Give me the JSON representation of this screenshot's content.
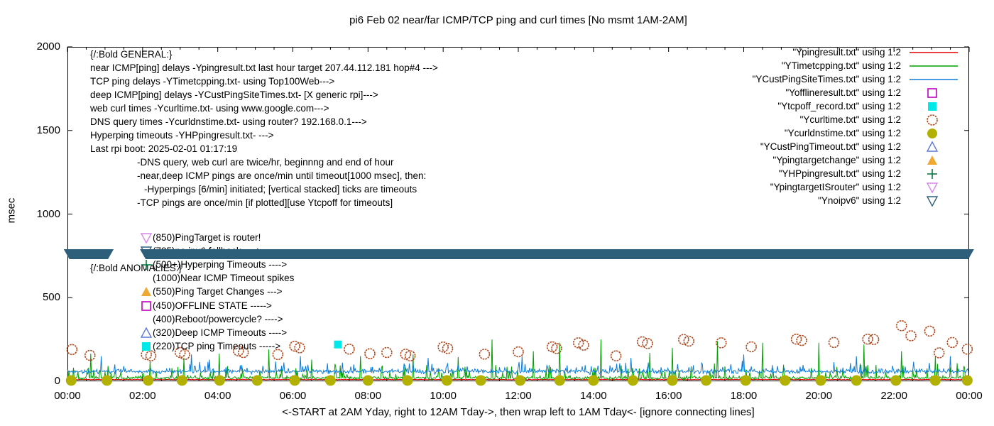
{
  "title": "pi6 Feb 02  near/far ICMP/TCP ping and curl times [No msmt 1AM-2AM]",
  "ylabel": "msec",
  "caption": "<-START at 2AM Yday, right to 12AM Tday->, then wrap left to 1AM Tday<- [ignore connecting lines]",
  "colors": {
    "red_line": "#e00000",
    "green_line": "#00a000",
    "blue_line": "#0b7cd9",
    "magenta_square": "#c000c0",
    "cyan_square": "#00e8e8",
    "curl_circle": "#b0481c",
    "dns_circle": "#b2b000",
    "deep_timeout_triangle": "#5a78d8",
    "target_change_triangle": "#f0a832",
    "hyperping_plus": "#0c7a44",
    "router_triangle": "#d886ec",
    "noipv6_band": "#2e5f7a",
    "axis": "#000000"
  },
  "axes": {
    "y_ticks": [
      "2000",
      "1500",
      "1000",
      "500",
      "0"
    ],
    "y_values": [
      2000,
      1500,
      1000,
      500,
      0
    ],
    "y_range": [
      0,
      2000
    ],
    "x_ticks": [
      "00:00",
      "02:00",
      "04:00",
      "06:00",
      "08:00",
      "10:00",
      "12:00",
      "14:00",
      "16:00",
      "18:00",
      "20:00",
      "22:00",
      "00:00"
    ],
    "x_hours": [
      0,
      2,
      4,
      6,
      8,
      10,
      12,
      14,
      16,
      18,
      20,
      22,
      24
    ],
    "x_range_hours": [
      0,
      24
    ]
  },
  "legend": {
    "entries": [
      {
        "label": "\"Ypingresult.txt\" using 1:2",
        "sample": "line",
        "color": "#e00000"
      },
      {
        "label": "\"YTimetcpping.txt\" using 1:2",
        "sample": "line",
        "color": "#00a000"
      },
      {
        "label": "\"YCustPingSiteTimes.txt\" using 1:2",
        "sample": "line",
        "color": "#0b7cd9"
      },
      {
        "label": "\"Yofflineresult.txt\" using 1:2",
        "sample": "square-open",
        "color": "#c000c0"
      },
      {
        "label": "\"Ytcpoff_record.txt\" using 1:2",
        "sample": "square-filled",
        "color": "#00e8e8"
      },
      {
        "label": "\"Ycurltime.txt\" using 1:2",
        "sample": "circle-open",
        "color": "#b0481c"
      },
      {
        "label": "\"Ycurldnstime.txt\" using 1:2",
        "sample": "circle-filled",
        "color": "#b2b000"
      },
      {
        "label": "\"YCustPingTimeout.txt\" using 1:2",
        "sample": "triangle-up-open",
        "color": "#5a78d8"
      },
      {
        "label": "\"Ypingtargetchange\" using 1:2",
        "sample": "triangle-up-filled",
        "color": "#f0a832"
      },
      {
        "label": "\"YHPpingresult.txt\" using 1:2",
        "sample": "plus",
        "color": "#0c7a44"
      },
      {
        "label": "\"YpingtargetISrouter\" using 1:2",
        "sample": "triangle-down-open",
        "color": "#d886ec"
      },
      {
        "label": "\"Ynoipv6\" using 1:2",
        "sample": "triangle-down-open",
        "color": "#2e5f7a"
      }
    ]
  },
  "annotations": {
    "general": [
      {
        "text": "{/:Bold GENERAL:}",
        "indent": 0
      },
      {
        "text": "near ICMP[ping] delays -Ypingresult.txt last hour target 207.44.112.181 hop#4 --->",
        "indent": 0
      },
      {
        "text": "TCP ping delays -YTimetcpping.txt- using Top100Web--->",
        "indent": 0
      },
      {
        "text": "deep ICMP[ping] delays -YCustPingSiteTimes.txt- [X generic rpi]--->",
        "indent": 0
      },
      {
        "text": "web curl times -Ycurltime.txt- using www.google.com--->",
        "indent": 0
      },
      {
        "text": "DNS query times -Ycurldnstime.txt- using router? 192.168.0.1--->",
        "indent": 0
      },
      {
        "text": "Hyperping timeouts -YHPpingresult.txt- --->",
        "indent": 0
      },
      {
        "text": "Last rpi boot: 2025-02-01 01:17:19",
        "indent": 0
      },
      {
        "text": "-DNS query, web curl are twice/hr, beginnng and end of hour",
        "indent": 66
      },
      {
        "text": "-near,deep ICMP pings are once/min until timeout[1000 msec], then:",
        "indent": 66
      },
      {
        "text": "-Hyperpings [6/min] initiated; [vertical stacked] ticks are timeouts",
        "indent": 76
      },
      {
        "text": "-TCP pings are once/min [if plotted][use Ytcpoff for timeouts]",
        "indent": 66
      }
    ],
    "anomalies_header": "{/:Bold ANOMALIES:}",
    "anomalies": [
      {
        "marker": "triangle-down-open",
        "color": "#d886ec",
        "text": "(850)PingTarget is router!",
        "y": 269
      },
      {
        "marker": "triangle-down-open",
        "color": "#2e5f7a",
        "text": "(785)no ipv6 fallback ---->",
        "y": 288,
        "obscured_by_band": true
      },
      {
        "marker": "plus",
        "color": "#0c7a44",
        "text": "(500+)Hyperping Timeouts ---->",
        "y": 307
      },
      {
        "marker": "none",
        "color": "#000000",
        "text": "(1000)Near ICMP Timeout spikes",
        "y": 326
      },
      {
        "marker": "triangle-up-filled",
        "color": "#f0a832",
        "text": "(550)Ping Target Changes --->",
        "y": 345
      },
      {
        "marker": "square-open",
        "color": "#c000c0",
        "text": "(450)OFFLINE STATE ----->",
        "y": 365
      },
      {
        "marker": "none",
        "color": "#000000",
        "text": "(400)Reboot/powercycle? ---->",
        "y": 384
      },
      {
        "marker": "triangle-up-open",
        "color": "#5a78d8",
        "text": "(320)Deep ICMP Timeouts ---->",
        "y": 403
      },
      {
        "marker": "square-filled",
        "color": "#00e8e8",
        "text": "(220)TCP ping Timeouts ----->",
        "y": 422
      }
    ]
  },
  "chart_data": {
    "type": "line",
    "title": "pi6 Feb 02  near/far ICMP/TCP ping and curl times [No msmt 1AM-2AM]",
    "xlabel": "<-START at 2AM Yday, right to 12AM Tday->, then wrap left to 1AM Tday<- [ignore connecting lines]",
    "ylabel": "msec",
    "x_range_hours": [
      0,
      24
    ],
    "ylim": [
      0,
      2000
    ],
    "grid": false,
    "legend_position": "top-right",
    "no_measurement_window": "1AM-2AM (x = 1.2h to 1.9h, visible as gap in noipv6 band)",
    "noise_seed": 7,
    "series": [
      {
        "name": "Ypingresult.txt",
        "style": "line",
        "color": "#e00000",
        "base": 10,
        "jitter": 3,
        "spike_prob": 0,
        "spike_amp": 0,
        "spikes": []
      },
      {
        "name": "YTimetcpping.txt",
        "style": "line",
        "color": "#00a000",
        "base": 20,
        "jitter": 15,
        "spike_prob": 0.1,
        "spike_amp": 80,
        "spikes": [
          [
            0.62,
            165
          ],
          [
            2.2,
            120
          ],
          [
            3.1,
            140
          ],
          [
            4.03,
            165
          ],
          [
            5.35,
            190
          ],
          [
            6.5,
            130
          ],
          [
            7.8,
            150
          ],
          [
            9.2,
            160
          ],
          [
            10.4,
            145
          ],
          [
            11.3,
            250
          ],
          [
            12.4,
            180
          ],
          [
            13.1,
            230
          ],
          [
            14.2,
            250
          ],
          [
            15.5,
            170
          ],
          [
            16.1,
            200
          ],
          [
            17.3,
            240
          ],
          [
            18.5,
            230
          ],
          [
            20.0,
            230
          ],
          [
            21.2,
            220
          ],
          [
            22.2,
            180
          ],
          [
            23.1,
            150
          ]
        ]
      },
      {
        "name": "YCustPingSiteTimes.txt",
        "style": "line",
        "color": "#0b7cd9",
        "base": 58,
        "jitter": 20,
        "spike_prob": 0.08,
        "spike_amp": 55,
        "spikes": [
          [
            0.9,
            150
          ],
          [
            3.3,
            160
          ],
          [
            6.2,
            150
          ],
          [
            9.6,
            140
          ],
          [
            12.1,
            150
          ],
          [
            15.0,
            140
          ],
          [
            18.0,
            160
          ],
          [
            21.0,
            150
          ],
          [
            23.5,
            150
          ]
        ]
      },
      {
        "name": "Ycurltime.txt",
        "style": "points",
        "marker": "circle-open",
        "color": "#b0481c",
        "points": [
          [
            0.12,
            190
          ],
          [
            0.6,
            155
          ],
          [
            2.1,
            160
          ],
          [
            2.22,
            152
          ],
          [
            3.0,
            172
          ],
          [
            3.12,
            160
          ],
          [
            4.55,
            182
          ],
          [
            4.68,
            172
          ],
          [
            5.6,
            160
          ],
          [
            6.05,
            210
          ],
          [
            6.18,
            200
          ],
          [
            7.5,
            192
          ],
          [
            8.05,
            165
          ],
          [
            8.5,
            172
          ],
          [
            9.0,
            162
          ],
          [
            9.12,
            152
          ],
          [
            10.0,
            205
          ],
          [
            10.12,
            196
          ],
          [
            11.1,
            162
          ],
          [
            12.0,
            176
          ],
          [
            12.9,
            206
          ],
          [
            13.02,
            196
          ],
          [
            13.6,
            230
          ],
          [
            13.74,
            216
          ],
          [
            14.6,
            152
          ],
          [
            15.3,
            236
          ],
          [
            15.44,
            226
          ],
          [
            16.4,
            250
          ],
          [
            16.54,
            240
          ],
          [
            17.4,
            230
          ],
          [
            18.2,
            206
          ],
          [
            19.4,
            252
          ],
          [
            19.54,
            244
          ],
          [
            20.4,
            232
          ],
          [
            21.3,
            252
          ],
          [
            21.46,
            250
          ],
          [
            22.2,
            332
          ],
          [
            22.45,
            272
          ],
          [
            22.95,
            300
          ],
          [
            23.2,
            170
          ],
          [
            23.55,
            232
          ],
          [
            23.95,
            192
          ]
        ]
      },
      {
        "name": "Ycurldnstime.txt",
        "style": "points",
        "marker": "circle-filled",
        "color": "#b2b000",
        "points": [
          [
            0.1,
            5
          ],
          [
            1.05,
            5
          ],
          [
            2.15,
            5
          ],
          [
            3.05,
            5
          ],
          [
            4.05,
            5
          ],
          [
            5.05,
            5
          ],
          [
            6.05,
            5
          ],
          [
            7.0,
            5
          ],
          [
            8.0,
            5
          ],
          [
            9.05,
            5
          ],
          [
            10.1,
            5
          ],
          [
            11.0,
            5
          ],
          [
            12.05,
            5
          ],
          [
            13.1,
            5
          ],
          [
            14.0,
            5
          ],
          [
            15.05,
            5
          ],
          [
            16.1,
            5
          ],
          [
            17.0,
            5
          ],
          [
            18.05,
            5
          ],
          [
            19.1,
            5
          ],
          [
            20.05,
            5
          ],
          [
            21.0,
            5
          ],
          [
            22.05,
            5
          ],
          [
            23.1,
            5
          ],
          [
            23.95,
            5
          ]
        ]
      },
      {
        "name": "Ytcpoff_record.txt",
        "style": "points",
        "marker": "square-filled",
        "color": "#00e8e8",
        "points": [
          [
            7.2,
            220
          ]
        ]
      },
      {
        "name": "Ynoipv6",
        "style": "band",
        "color": "#2e5f7a",
        "value": 760,
        "half_thickness_msec": 30,
        "segments_hours": [
          [
            -0.1,
            1.23
          ],
          [
            1.93,
            24.13
          ]
        ]
      }
    ]
  }
}
